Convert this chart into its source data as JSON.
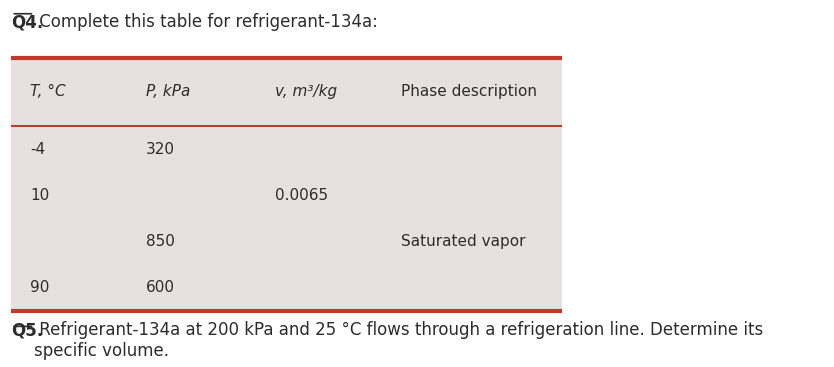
{
  "title_q4": "Q4.",
  "title_text": " Complete this table for refrigerant-134a:",
  "col_headers": [
    "T, °C",
    "P, kPa",
    "v, m³/kg",
    "Phase description"
  ],
  "rows": [
    [
      "-4",
      "320",
      "",
      ""
    ],
    [
      "10",
      "",
      "0.0065",
      ""
    ],
    [
      "",
      "850",
      "",
      "Saturated vapor"
    ],
    [
      "90",
      "600",
      "",
      ""
    ]
  ],
  "q5_label": "Q5.",
  "q5_text": " Refrigerant-134a at 200 kPa and 25 °C flows through a refrigeration line. Determine its\nspecific volume.",
  "table_bg": "#e8e0e0",
  "header_line_color": "#c0392b",
  "text_color": "#2c2c2c",
  "bg_color": "#ffffff",
  "font_size": 11,
  "header_font_size": 11,
  "title_font_size": 12
}
